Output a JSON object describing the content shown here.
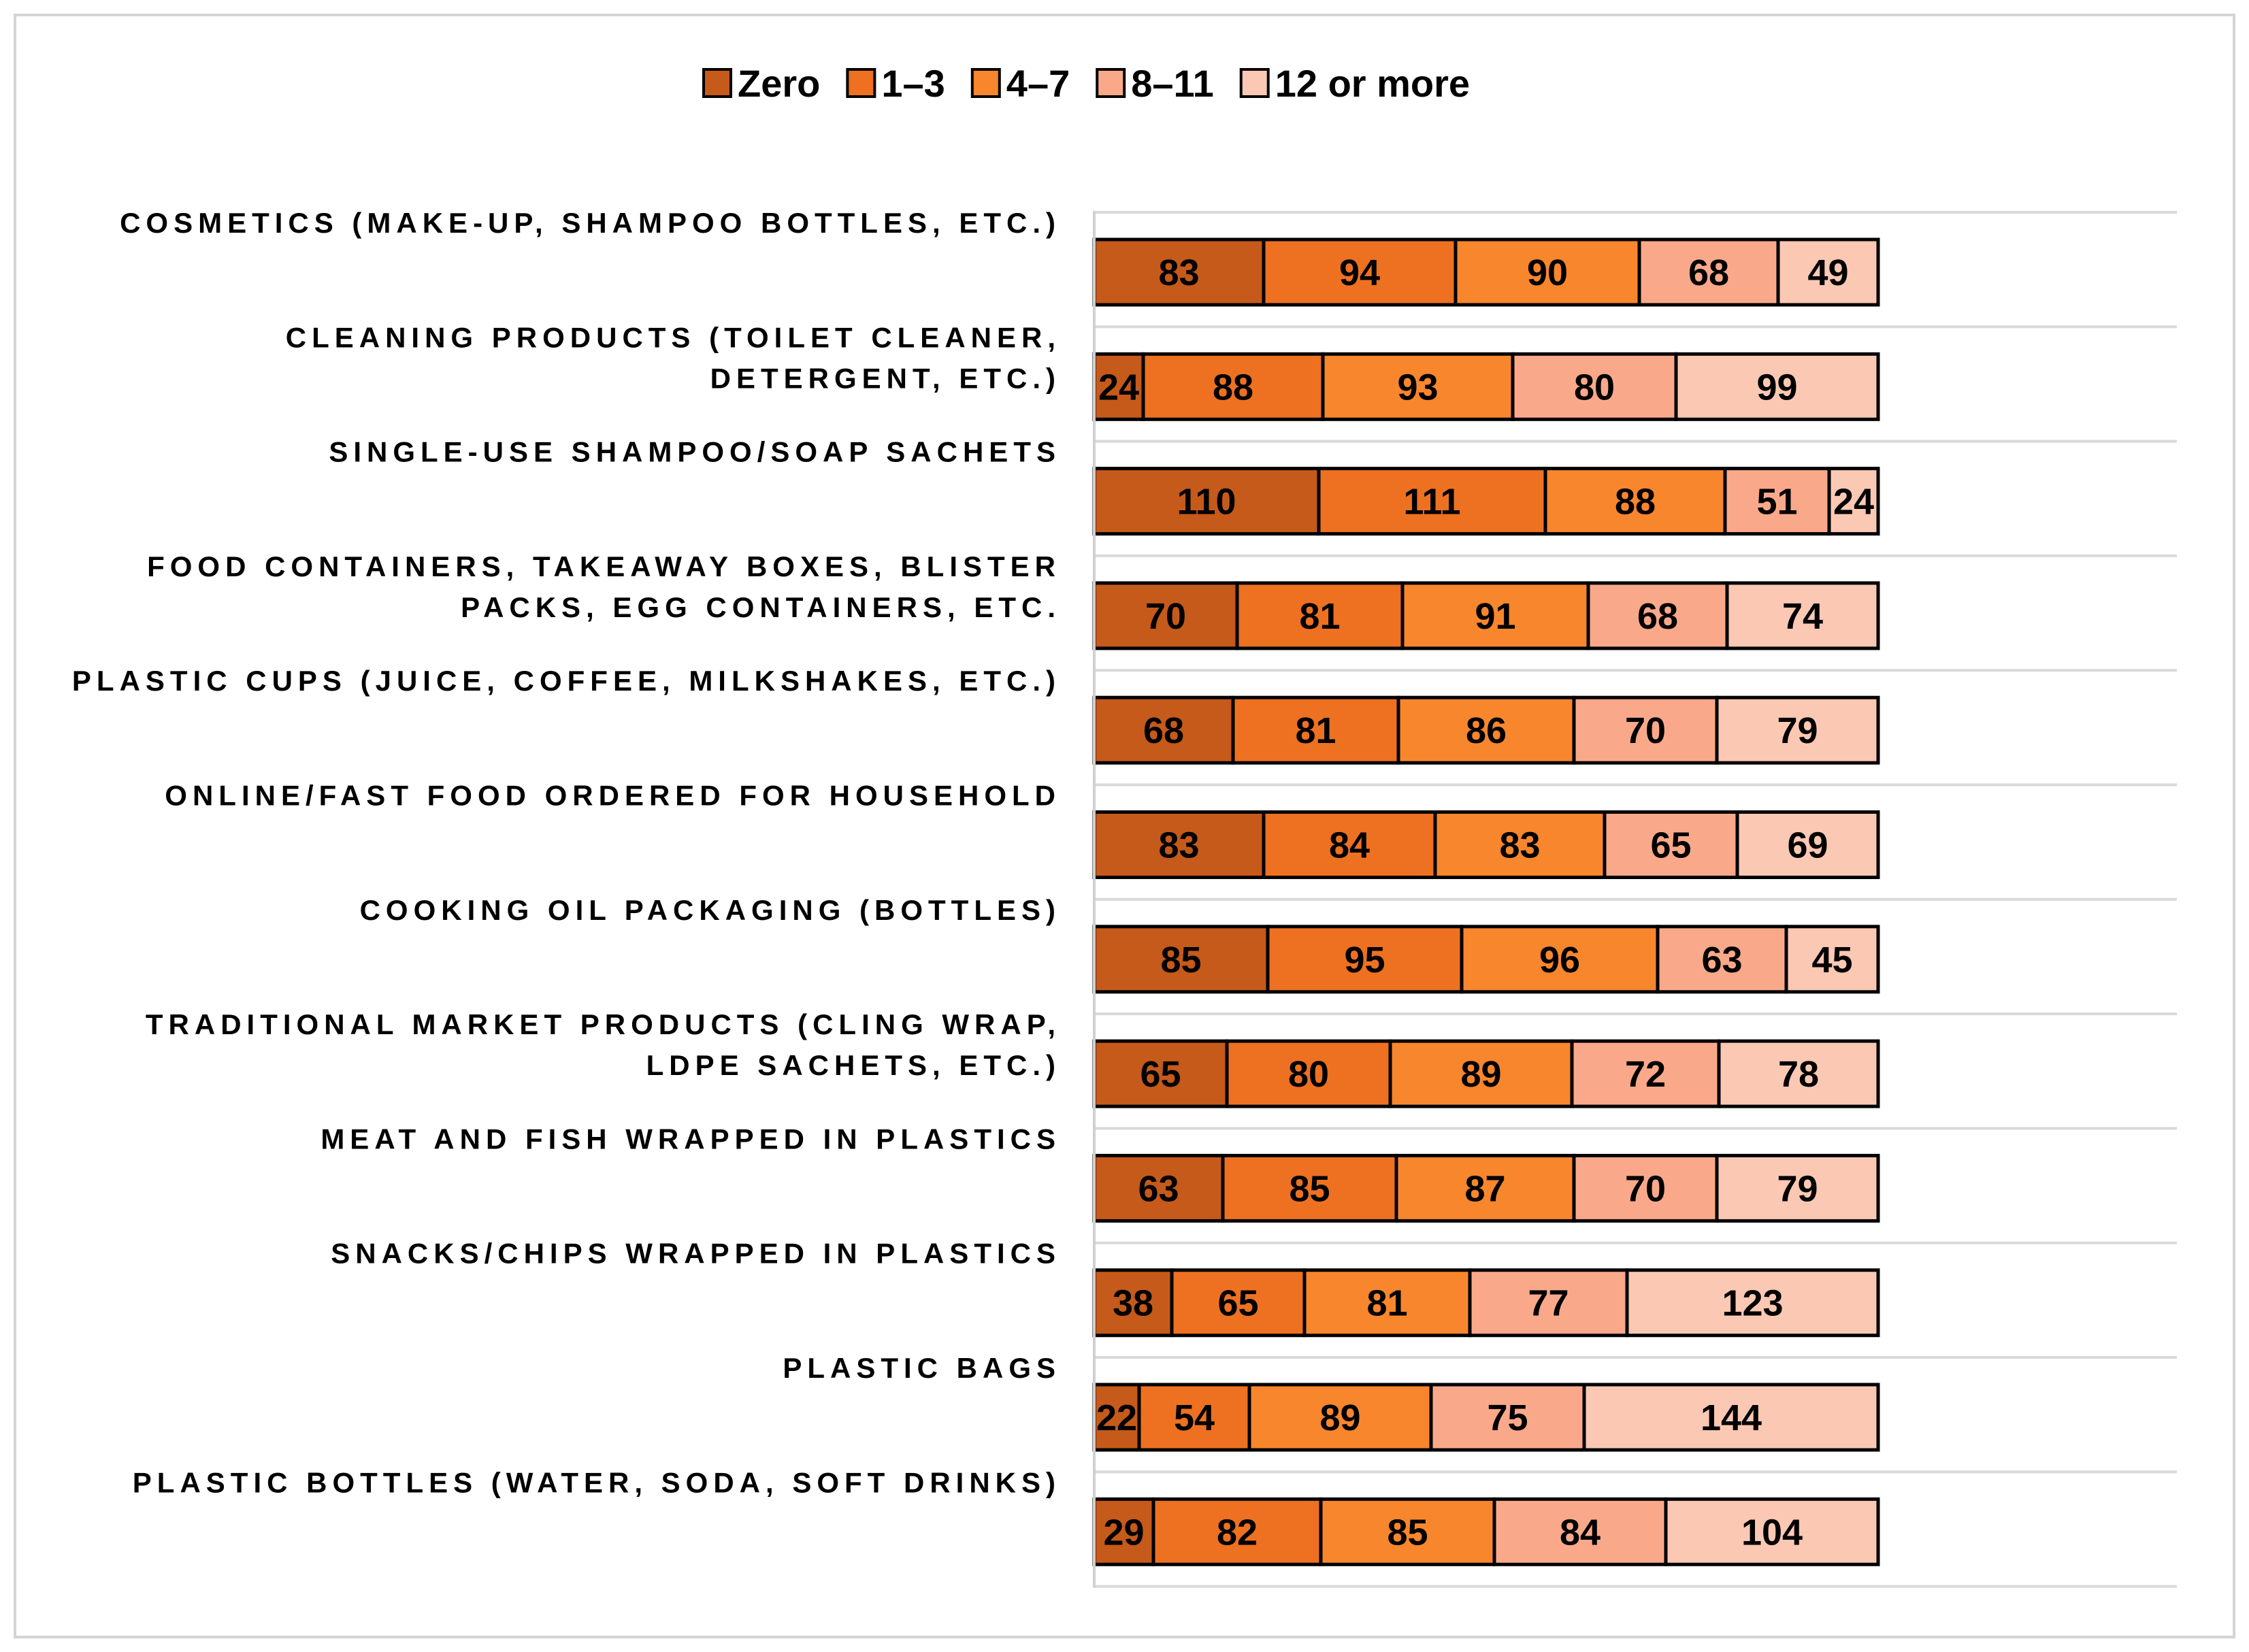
{
  "chart_data": {
    "type": "bar",
    "orientation": "horizontal",
    "stacked": true,
    "legend_position": "top",
    "grid": true,
    "categories": [
      [
        "COSMETICS (MAKE-UP, SHAMPOO BOTTLES, ETC.)"
      ],
      [
        "CLEANING PRODUCTS (TOILET CLEANER,",
        "DETERGENT, ETC.)"
      ],
      [
        "SINGLE-USE SHAMPOO/SOAP SACHETS"
      ],
      [
        "FOOD CONTAINERS, TAKEAWAY BOXES, BLISTER",
        "PACKS, EGG CONTAINERS, ETC."
      ],
      [
        "PLASTIC CUPS (JUICE, COFFEE, MILKSHAKES, ETC.)"
      ],
      [
        "ONLINE/FAST FOOD ORDERED FOR HOUSEHOLD"
      ],
      [
        "COOKING OIL PACKAGING (BOTTLES)"
      ],
      [
        "TRADITIONAL MARKET PRODUCTS (CLING WRAP,",
        "LDPE SACHETS, ETC.)"
      ],
      [
        "MEAT AND FISH WRAPPED IN PLASTICS"
      ],
      [
        "SNACKS/CHIPS WRAPPED IN PLASTICS"
      ],
      [
        "PLASTIC BAGS"
      ],
      [
        "PLASTIC BOTTLES (WATER, SODA, SOFT DRINKS)"
      ]
    ],
    "series": [
      {
        "name": "Zero",
        "color": "#c55a1a",
        "values": [
          83,
          24,
          110,
          70,
          68,
          83,
          85,
          65,
          63,
          38,
          22,
          29
        ]
      },
      {
        "name": "1–3",
        "color": "#ed7121",
        "values": [
          94,
          88,
          111,
          81,
          81,
          84,
          95,
          80,
          85,
          65,
          54,
          82
        ]
      },
      {
        "name": "4–7",
        "color": "#f8862d",
        "values": [
          90,
          93,
          88,
          91,
          86,
          83,
          96,
          89,
          87,
          81,
          89,
          85
        ]
      },
      {
        "name": "8–11",
        "color": "#f9a98a",
        "values": [
          68,
          80,
          51,
          68,
          70,
          65,
          63,
          72,
          70,
          77,
          75,
          84
        ]
      },
      {
        "name": "12 or more",
        "color": "#fbc8b4",
        "values": [
          49,
          99,
          24,
          74,
          79,
          69,
          45,
          78,
          79,
          123,
          144,
          104
        ]
      }
    ]
  }
}
